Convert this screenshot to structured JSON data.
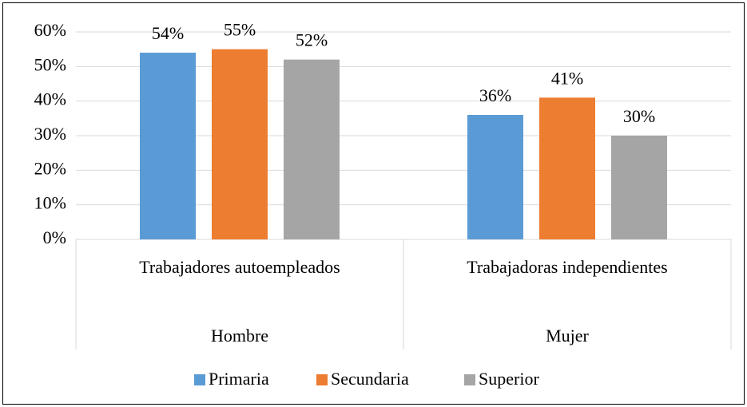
{
  "chart_data": {
    "type": "bar",
    "categories": [
      "Trabajadores autoempleados",
      "Trabajadoras independientes"
    ],
    "category_groups": [
      "Hombre",
      "Mujer"
    ],
    "series": [
      {
        "name": "Primaria",
        "color": "#5b9bd5",
        "values": [
          54,
          36
        ],
        "value_labels": [
          "54%",
          "36%"
        ]
      },
      {
        "name": "Secundaria",
        "color": "#ed7d31",
        "values": [
          55,
          41
        ],
        "value_labels": [
          "55%",
          "41%"
        ]
      },
      {
        "name": "Superior",
        "color": "#a5a5a5",
        "values": [
          52,
          30
        ],
        "value_labels": [
          "52%",
          "30%"
        ]
      }
    ],
    "ylim": [
      0,
      60
    ],
    "yticks": [
      {
        "value": 0,
        "label": "0%"
      },
      {
        "value": 10,
        "label": "10%"
      },
      {
        "value": 20,
        "label": "20%"
      },
      {
        "value": 30,
        "label": "30%"
      },
      {
        "value": 40,
        "label": "40%"
      },
      {
        "value": 50,
        "label": "50%"
      },
      {
        "value": 60,
        "label": "60%"
      }
    ],
    "grid": true,
    "legend": "bottom"
  }
}
